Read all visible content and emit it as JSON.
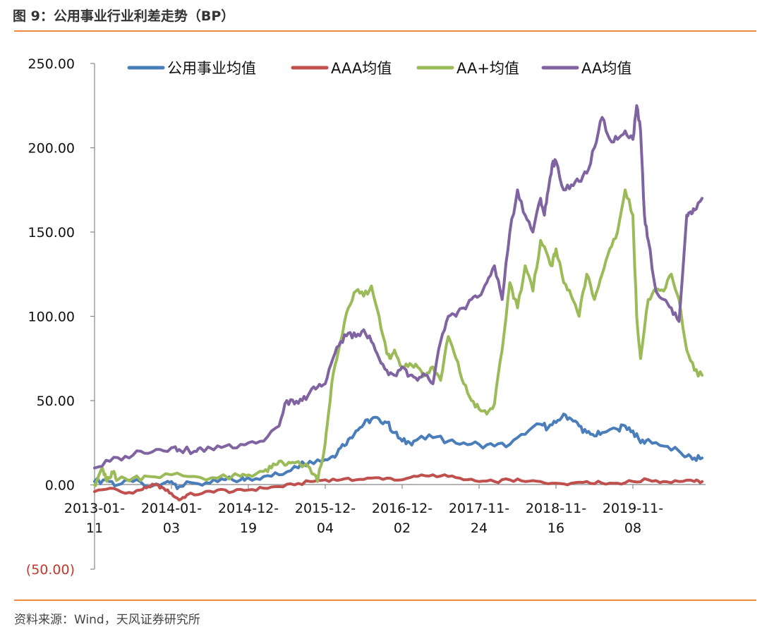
{
  "header": {
    "title": "图 9：公用事业行业利差走势（BP）"
  },
  "footer": {
    "source": "资料来源：Wind，天风证券研究所"
  },
  "chart_data": {
    "type": "line",
    "title": "公用事业行业利差走势（BP）",
    "xlabel": "",
    "ylabel": "",
    "ylim": [
      -50,
      250
    ],
    "y_ticks": [
      -50,
      0,
      50,
      100,
      150,
      200,
      250
    ],
    "y_tick_labels": [
      "(50.00)",
      "0.00",
      "50.00",
      "100.00",
      "150.00",
      "200.00",
      "250.00"
    ],
    "x_ticks": [
      0,
      1,
      2,
      3,
      4,
      5,
      6,
      7
    ],
    "x_tick_labels": [
      [
        "2013-01-",
        "11"
      ],
      [
        "2014-01-",
        "03"
      ],
      [
        "2014-12-",
        "19"
      ],
      [
        "2015-12-",
        "04"
      ],
      [
        "2016-12-",
        "02"
      ],
      [
        "2017-11-",
        "24"
      ],
      [
        "2018-11-",
        "16"
      ],
      [
        "2019-11-",
        "08"
      ]
    ],
    "x_range": [
      0,
      7.9
    ],
    "legend_position": "top",
    "series": [
      {
        "name": "公用事业均值",
        "color": "#4a7ebb",
        "x": [
          0,
          0.15,
          0.3,
          0.5,
          0.7,
          0.9,
          1.0,
          1.1,
          1.3,
          1.5,
          1.7,
          1.9,
          2.0,
          2.2,
          2.4,
          2.6,
          2.8,
          3.0,
          3.1,
          3.2,
          3.3,
          3.4,
          3.5,
          3.6,
          3.7,
          3.8,
          3.9,
          4.0,
          4.1,
          4.2,
          4.4,
          4.6,
          4.8,
          5.0,
          5.2,
          5.4,
          5.6,
          5.8,
          5.9,
          6.0,
          6.1,
          6.2,
          6.3,
          6.4,
          6.5,
          6.6,
          6.8,
          6.9,
          7.0,
          7.1,
          7.2,
          7.4,
          7.6,
          7.7,
          7.8,
          7.9
        ],
        "values": [
          2,
          3,
          0,
          2,
          -1,
          1,
          2,
          -1,
          1,
          1,
          3,
          3,
          4,
          5,
          6,
          11,
          14,
          15,
          17,
          22,
          27,
          32,
          36,
          39,
          39,
          37,
          31,
          26,
          25,
          27,
          28,
          26,
          25,
          24,
          23,
          24,
          30,
          36,
          34,
          37,
          42,
          39,
          35,
          31,
          29,
          31,
          33,
          35,
          32,
          25,
          27,
          23,
          20,
          17,
          16,
          16
        ]
      },
      {
        "name": "AAA均值",
        "color": "#c0504d",
        "x": [
          0,
          0.2,
          0.4,
          0.6,
          0.7,
          0.8,
          0.9,
          1.0,
          1.1,
          1.2,
          1.4,
          1.6,
          1.8,
          2.0,
          2.2,
          2.4,
          2.6,
          2.8,
          3.0,
          3.2,
          3.4,
          3.6,
          3.8,
          4.0,
          4.2,
          4.4,
          4.6,
          4.8,
          5.0,
          5.2,
          5.4,
          5.6,
          5.8,
          6.0,
          6.2,
          6.4,
          6.6,
          6.8,
          7.0,
          7.2,
          7.4,
          7.6,
          7.8,
          7.9
        ],
        "values": [
          -4,
          -2,
          -5,
          -3,
          -1,
          0,
          -2,
          -5,
          -9,
          -6,
          -5,
          -3,
          -4,
          -3,
          -2,
          -1,
          0,
          2,
          3,
          3,
          3,
          4,
          4,
          3,
          5,
          6,
          5,
          3,
          2,
          2,
          3,
          2,
          2,
          1,
          1,
          2,
          1,
          1,
          2,
          3,
          2,
          2,
          2,
          2
        ]
      },
      {
        "name": "AA+均值",
        "color": "#9bbb59",
        "x": [
          0,
          0.05,
          0.1,
          0.15,
          0.2,
          0.25,
          0.3,
          0.5,
          0.7,
          1.0,
          1.3,
          1.6,
          1.9,
          2.0,
          2.2,
          2.3,
          2.4,
          2.5,
          2.6,
          2.8,
          2.9,
          3.0,
          3.05,
          3.1,
          3.2,
          3.3,
          3.4,
          3.5,
          3.6,
          3.7,
          3.8,
          3.85,
          3.9,
          4.0,
          4.1,
          4.2,
          4.3,
          4.4,
          4.5,
          4.6,
          4.7,
          4.8,
          4.9,
          5.0,
          5.1,
          5.2,
          5.3,
          5.4,
          5.5,
          5.6,
          5.7,
          5.8,
          5.9,
          5.95,
          6.0,
          6.1,
          6.2,
          6.3,
          6.4,
          6.5,
          6.6,
          6.7,
          6.8,
          6.9,
          7.0,
          7.05,
          7.1,
          7.2,
          7.3,
          7.4,
          7.5,
          7.6,
          7.7,
          7.8,
          7.9
        ],
        "values": [
          0,
          5,
          10,
          3,
          4,
          8,
          3,
          4,
          5,
          6,
          5,
          4,
          5,
          6,
          8,
          10,
          14,
          12,
          13,
          10,
          2,
          25,
          45,
          65,
          85,
          105,
          115,
          112,
          118,
          100,
          78,
          75,
          80,
          70,
          72,
          70,
          65,
          70,
          62,
          88,
          75,
          60,
          50,
          45,
          42,
          48,
          80,
          120,
          105,
          130,
          115,
          145,
          135,
          130,
          140,
          120,
          112,
          100,
          125,
          110,
          125,
          140,
          150,
          175,
          160,
          100,
          75,
          110,
          115,
          115,
          125,
          110,
          80,
          68,
          65
        ]
      },
      {
        "name": "AA均值",
        "color": "#8064a2",
        "x": [
          0,
          0.2,
          0.4,
          0.6,
          0.8,
          1.0,
          1.1,
          1.3,
          1.4,
          1.5,
          1.7,
          1.9,
          2.0,
          2.2,
          2.4,
          2.5,
          2.6,
          2.7,
          2.8,
          2.9,
          3.0,
          3.1,
          3.2,
          3.3,
          3.4,
          3.5,
          3.6,
          3.7,
          3.8,
          3.9,
          4.0,
          4.1,
          4.2,
          4.3,
          4.4,
          4.5,
          4.6,
          4.7,
          4.8,
          4.9,
          5.0,
          5.1,
          5.2,
          5.3,
          5.4,
          5.5,
          5.6,
          5.7,
          5.8,
          5.85,
          5.9,
          5.95,
          6.0,
          6.1,
          6.2,
          6.3,
          6.4,
          6.5,
          6.6,
          6.7,
          6.8,
          6.9,
          7.0,
          7.05,
          7.1,
          7.15,
          7.2,
          7.3,
          7.4,
          7.5,
          7.6,
          7.7,
          7.75,
          7.8,
          7.9
        ],
        "values": [
          10,
          14,
          17,
          20,
          21,
          22,
          21,
          20,
          21,
          22,
          23,
          24,
          25,
          26,
          35,
          50,
          48,
          50,
          55,
          58,
          60,
          75,
          85,
          90,
          88,
          92,
          85,
          75,
          68,
          65,
          70,
          65,
          62,
          65,
          60,
          85,
          100,
          100,
          105,
          110,
          112,
          120,
          130,
          110,
          150,
          175,
          160,
          150,
          170,
          160,
          175,
          190,
          192,
          175,
          178,
          180,
          185,
          200,
          218,
          205,
          205,
          210,
          205,
          225,
          210,
          160,
          145,
          115,
          110,
          105,
          97,
          160,
          162,
          163,
          170
        ]
      }
    ]
  }
}
